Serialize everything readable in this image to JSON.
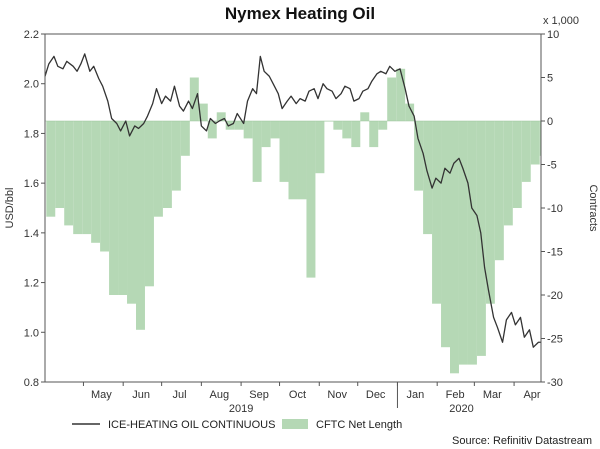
{
  "chart_data": {
    "type": "line",
    "title": "Nymex Heating Oil",
    "ylabel": "USD/bbl",
    "y2label": "Contracts",
    "y2_multiplier_label": "x 1,000",
    "ylim": [
      0.8,
      2.2
    ],
    "y2lim": [
      -30,
      10
    ],
    "yticks": [
      "0.8",
      "1.0",
      "1.2",
      "1.4",
      "1.6",
      "1.8",
      "2.0",
      "2.2"
    ],
    "y2ticks": [
      "-30",
      "-25",
      "-20",
      "-15",
      "-10",
      "-5",
      "0",
      "5",
      "10"
    ],
    "xlim": [
      "2019-04-01",
      "2020-04-22"
    ],
    "months": [
      {
        "label": "May",
        "date": "2019-05-15"
      },
      {
        "label": "Jun",
        "date": "2019-06-15"
      },
      {
        "label": "Jul",
        "date": "2019-07-15"
      },
      {
        "label": "Aug",
        "date": "2019-08-15"
      },
      {
        "label": "Sep",
        "date": "2019-09-15"
      },
      {
        "label": "Oct",
        "date": "2019-10-15"
      },
      {
        "label": "Nov",
        "date": "2019-11-15"
      },
      {
        "label": "Dec",
        "date": "2019-12-15"
      },
      {
        "label": "Jan",
        "date": "2020-01-15"
      },
      {
        "label": "Feb",
        "date": "2020-02-15"
      },
      {
        "label": "Mar",
        "date": "2020-03-15"
      },
      {
        "label": "Apr",
        "date": "2020-04-15"
      }
    ],
    "years": [
      {
        "label": "2019",
        "date": "2019-09-01"
      },
      {
        "label": "2020",
        "date": "2020-02-20"
      }
    ],
    "grid": false,
    "legend_position": "bottom",
    "series": [
      {
        "name": "ICE-HEATING OIL CONTINUOUS",
        "type": "line",
        "axis": "left",
        "color": "#333333",
        "points": [
          [
            "2019-04-01",
            2.03
          ],
          [
            "2019-04-04",
            2.08
          ],
          [
            "2019-04-08",
            2.11
          ],
          [
            "2019-04-11",
            2.07
          ],
          [
            "2019-04-15",
            2.06
          ],
          [
            "2019-04-18",
            2.09
          ],
          [
            "2019-04-23",
            2.07
          ],
          [
            "2019-04-26",
            2.05
          ],
          [
            "2019-04-29",
            2.08
          ],
          [
            "2019-05-02",
            2.12
          ],
          [
            "2019-05-06",
            2.05
          ],
          [
            "2019-05-09",
            2.07
          ],
          [
            "2019-05-13",
            2.02
          ],
          [
            "2019-05-16",
            1.99
          ],
          [
            "2019-05-20",
            1.93
          ],
          [
            "2019-05-23",
            1.86
          ],
          [
            "2019-05-27",
            1.84
          ],
          [
            "2019-05-30",
            1.81
          ],
          [
            "2019-06-03",
            1.85
          ],
          [
            "2019-06-06",
            1.79
          ],
          [
            "2019-06-10",
            1.83
          ],
          [
            "2019-06-13",
            1.82
          ],
          [
            "2019-06-17",
            1.84
          ],
          [
            "2019-06-20",
            1.87
          ],
          [
            "2019-06-24",
            1.92
          ],
          [
            "2019-06-27",
            1.98
          ],
          [
            "2019-07-01",
            1.92
          ],
          [
            "2019-07-04",
            1.95
          ],
          [
            "2019-07-08",
            1.93
          ],
          [
            "2019-07-11",
            1.99
          ],
          [
            "2019-07-15",
            1.91
          ],
          [
            "2019-07-18",
            1.89
          ],
          [
            "2019-07-22",
            1.93
          ],
          [
            "2019-07-25",
            1.9
          ],
          [
            "2019-07-29",
            1.96
          ],
          [
            "2019-08-01",
            1.83
          ],
          [
            "2019-08-05",
            1.81
          ],
          [
            "2019-08-08",
            1.86
          ],
          [
            "2019-08-12",
            1.84
          ],
          [
            "2019-08-15",
            1.85
          ],
          [
            "2019-08-19",
            1.86
          ],
          [
            "2019-08-22",
            1.83
          ],
          [
            "2019-08-26",
            1.84
          ],
          [
            "2019-08-29",
            1.88
          ],
          [
            "2019-09-03",
            1.84
          ],
          [
            "2019-09-06",
            1.93
          ],
          [
            "2019-09-10",
            1.98
          ],
          [
            "2019-09-13",
            1.96
          ],
          [
            "2019-09-16",
            2.11
          ],
          [
            "2019-09-19",
            2.05
          ],
          [
            "2019-09-23",
            2.03
          ],
          [
            "2019-09-26",
            2.0
          ],
          [
            "2019-09-30",
            1.96
          ],
          [
            "2019-10-03",
            1.9
          ],
          [
            "2019-10-07",
            1.93
          ],
          [
            "2019-10-10",
            1.95
          ],
          [
            "2019-10-14",
            1.92
          ],
          [
            "2019-10-17",
            1.94
          ],
          [
            "2019-10-21",
            1.93
          ],
          [
            "2019-10-24",
            1.97
          ],
          [
            "2019-10-28",
            1.98
          ],
          [
            "2019-10-31",
            1.94
          ],
          [
            "2019-11-04",
            2.0
          ],
          [
            "2019-11-07",
            1.98
          ],
          [
            "2019-11-11",
            1.97
          ],
          [
            "2019-11-14",
            1.94
          ],
          [
            "2019-11-18",
            1.96
          ],
          [
            "2019-11-21",
            1.99
          ],
          [
            "2019-11-25",
            1.98
          ],
          [
            "2019-11-28",
            1.93
          ],
          [
            "2019-12-02",
            1.94
          ],
          [
            "2019-12-05",
            1.97
          ],
          [
            "2019-12-09",
            1.98
          ],
          [
            "2019-12-12",
            2.01
          ],
          [
            "2019-12-16",
            2.04
          ],
          [
            "2019-12-19",
            2.05
          ],
          [
            "2019-12-23",
            2.04
          ],
          [
            "2019-12-26",
            2.07
          ],
          [
            "2019-12-30",
            2.05
          ],
          [
            "2020-01-03",
            2.06
          ],
          [
            "2020-01-07",
            1.98
          ],
          [
            "2020-01-10",
            1.91
          ],
          [
            "2020-01-14",
            1.87
          ],
          [
            "2020-01-17",
            1.78
          ],
          [
            "2020-01-21",
            1.72
          ],
          [
            "2020-01-24",
            1.65
          ],
          [
            "2020-01-28",
            1.58
          ],
          [
            "2020-01-31",
            1.62
          ],
          [
            "2020-02-04",
            1.6
          ],
          [
            "2020-02-07",
            1.66
          ],
          [
            "2020-02-11",
            1.64
          ],
          [
            "2020-02-14",
            1.68
          ],
          [
            "2020-02-18",
            1.7
          ],
          [
            "2020-02-21",
            1.66
          ],
          [
            "2020-02-25",
            1.6
          ],
          [
            "2020-02-28",
            1.5
          ],
          [
            "2020-03-03",
            1.47
          ],
          [
            "2020-03-06",
            1.4
          ],
          [
            "2020-03-09",
            1.26
          ],
          [
            "2020-03-12",
            1.17
          ],
          [
            "2020-03-16",
            1.06
          ],
          [
            "2020-03-19",
            1.02
          ],
          [
            "2020-03-23",
            0.96
          ],
          [
            "2020-03-26",
            1.05
          ],
          [
            "2020-03-30",
            1.08
          ],
          [
            "2020-04-02",
            1.03
          ],
          [
            "2020-04-06",
            1.06
          ],
          [
            "2020-04-09",
            0.98
          ],
          [
            "2020-04-13",
            1.01
          ],
          [
            "2020-04-16",
            0.94
          ],
          [
            "2020-04-20",
            0.96
          ],
          [
            "2020-04-22",
            0.96
          ]
        ]
      },
      {
        "name": "CFTC Net Length",
        "type": "area",
        "axis": "right",
        "color": "#b5d8b5",
        "points": [
          [
            "2019-04-02",
            -11
          ],
          [
            "2019-04-09",
            -10
          ],
          [
            "2019-04-16",
            -12
          ],
          [
            "2019-04-23",
            -13
          ],
          [
            "2019-04-30",
            -13
          ],
          [
            "2019-05-07",
            -14
          ],
          [
            "2019-05-14",
            -15
          ],
          [
            "2019-05-21",
            -20
          ],
          [
            "2019-05-28",
            -20
          ],
          [
            "2019-06-04",
            -21
          ],
          [
            "2019-06-11",
            -24
          ],
          [
            "2019-06-18",
            -19
          ],
          [
            "2019-06-25",
            -11
          ],
          [
            "2019-07-02",
            -10
          ],
          [
            "2019-07-09",
            -8
          ],
          [
            "2019-07-16",
            -4
          ],
          [
            "2019-07-23",
            5
          ],
          [
            "2019-07-30",
            2
          ],
          [
            "2019-08-06",
            -2
          ],
          [
            "2019-08-13",
            1
          ],
          [
            "2019-08-20",
            -1
          ],
          [
            "2019-08-27",
            -1
          ],
          [
            "2019-09-03",
            -2
          ],
          [
            "2019-09-10",
            -7
          ],
          [
            "2019-09-17",
            -3
          ],
          [
            "2019-09-24",
            -2
          ],
          [
            "2019-10-01",
            -7
          ],
          [
            "2019-10-08",
            -9
          ],
          [
            "2019-10-15",
            -9
          ],
          [
            "2019-10-22",
            -18
          ],
          [
            "2019-10-29",
            -6
          ],
          [
            "2019-11-05",
            0
          ],
          [
            "2019-11-12",
            -1
          ],
          [
            "2019-11-19",
            -2
          ],
          [
            "2019-11-26",
            -3
          ],
          [
            "2019-12-03",
            1
          ],
          [
            "2019-12-10",
            -3
          ],
          [
            "2019-12-17",
            -1
          ],
          [
            "2019-12-24",
            5
          ],
          [
            "2019-12-31",
            6
          ],
          [
            "2020-01-07",
            2
          ],
          [
            "2020-01-14",
            -8
          ],
          [
            "2020-01-21",
            -13
          ],
          [
            "2020-01-28",
            -21
          ],
          [
            "2020-02-04",
            -26
          ],
          [
            "2020-02-11",
            -29
          ],
          [
            "2020-02-18",
            -28
          ],
          [
            "2020-02-25",
            -28
          ],
          [
            "2020-03-03",
            -27
          ],
          [
            "2020-03-10",
            -21
          ],
          [
            "2020-03-17",
            -16
          ],
          [
            "2020-03-24",
            -12
          ],
          [
            "2020-03-31",
            -10
          ],
          [
            "2020-04-07",
            -7
          ],
          [
            "2020-04-14",
            -5
          ],
          [
            "2020-04-21",
            -4
          ]
        ]
      }
    ],
    "source": "Source: Refinitiv Datastream"
  }
}
